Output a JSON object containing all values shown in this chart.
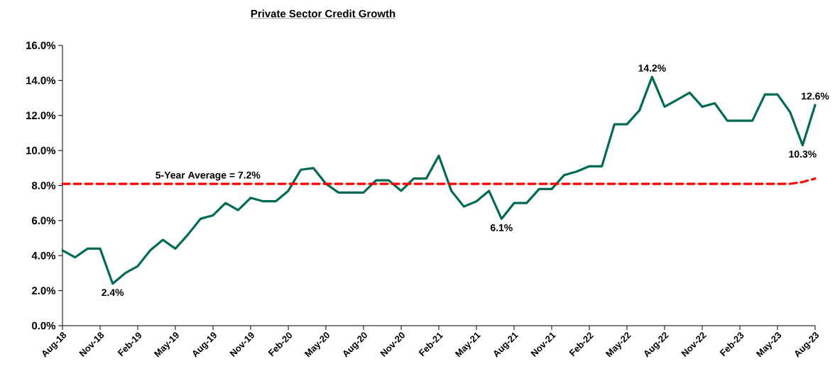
{
  "chart_data": {
    "type": "line",
    "title": "Private Sector Credit Growth",
    "categories": [
      "Aug-18",
      null,
      null,
      "Nov-18",
      null,
      null,
      "Feb-19",
      null,
      null,
      "May-19",
      null,
      null,
      "Aug-19",
      null,
      null,
      "Nov-19",
      null,
      null,
      "Feb-20",
      null,
      null,
      "May-20",
      null,
      null,
      "Aug-20",
      null,
      null,
      "Nov-20",
      null,
      null,
      "Feb-21",
      null,
      null,
      "May-21",
      null,
      null,
      "Aug-21",
      null,
      null,
      "Nov-21",
      null,
      null,
      "Feb-22",
      null,
      null,
      "May-22",
      null,
      null,
      "Aug-22",
      null,
      null,
      "Nov-22",
      null,
      null,
      "Feb-23",
      null,
      null,
      "May-23",
      null,
      null,
      "Aug-23"
    ],
    "series": [
      {
        "color": "#036b55",
        "values": [
          4.3,
          3.9,
          4.4,
          4.4,
          2.4,
          3.0,
          3.4,
          4.3,
          4.9,
          4.4,
          5.2,
          6.1,
          6.3,
          7.0,
          6.6,
          7.3,
          7.1,
          7.1,
          7.7,
          8.9,
          9.0,
          8.1,
          7.6,
          7.6,
          7.6,
          8.3,
          8.3,
          7.7,
          8.4,
          8.4,
          9.7,
          7.7,
          6.8,
          7.1,
          7.7,
          6.1,
          7.0,
          7.0,
          7.8,
          7.8,
          8.6,
          8.8,
          9.1,
          9.1,
          11.5,
          11.5,
          12.3,
          14.2,
          12.5,
          12.9,
          13.3,
          12.5,
          12.7,
          11.7,
          11.7,
          11.7,
          13.2,
          13.2,
          12.2,
          10.3,
          12.6
        ],
        "value_labels": [
          null,
          null,
          null,
          null,
          "2.4%",
          null,
          null,
          null,
          null,
          null,
          null,
          null,
          null,
          null,
          null,
          null,
          null,
          null,
          null,
          null,
          null,
          null,
          null,
          null,
          null,
          null,
          null,
          null,
          null,
          null,
          null,
          null,
          null,
          null,
          null,
          "6.1%",
          null,
          null,
          null,
          null,
          null,
          null,
          null,
          null,
          null,
          null,
          null,
          "14.2%",
          null,
          null,
          null,
          null,
          null,
          null,
          null,
          null,
          null,
          null,
          null,
          "10.3%",
          "12.6%"
        ]
      },
      {
        "name": "5-Year Average = 7.2%",
        "color": "#ff0000",
        "line_style": "dashed",
        "values": [
          8.1,
          8.1,
          8.1,
          8.1,
          8.1,
          8.1,
          8.1,
          8.1,
          8.1,
          8.1,
          8.1,
          8.1,
          8.1,
          8.1,
          8.1,
          8.1,
          8.1,
          8.1,
          8.1,
          8.1,
          8.1,
          8.1,
          8.1,
          8.1,
          8.1,
          8.1,
          8.1,
          8.1,
          8.1,
          8.1,
          8.1,
          8.1,
          8.1,
          8.1,
          8.1,
          8.1,
          8.1,
          8.1,
          8.1,
          8.1,
          8.1,
          8.1,
          8.1,
          8.1,
          8.1,
          8.1,
          8.1,
          8.1,
          8.1,
          8.1,
          8.1,
          8.1,
          8.1,
          8.1,
          8.1,
          8.1,
          8.1,
          8.1,
          8.1,
          8.2,
          8.4
        ]
      }
    ],
    "ylim": [
      0,
      16
    ],
    "yticks": [
      {
        "value": 0,
        "label": "0.0%"
      },
      {
        "value": 2,
        "label": "2.0%"
      },
      {
        "value": 4,
        "label": "4.0%"
      },
      {
        "value": 6,
        "label": "6.0%"
      },
      {
        "value": 8,
        "label": "8.0%"
      },
      {
        "value": 10,
        "label": "10.0%"
      },
      {
        "value": 12,
        "label": "12.0%"
      },
      {
        "value": 14,
        "label": "14.0%"
      },
      {
        "value": 16,
        "label": "16.0%"
      }
    ],
    "grid": false,
    "marker": "none",
    "line_style": "solid"
  }
}
